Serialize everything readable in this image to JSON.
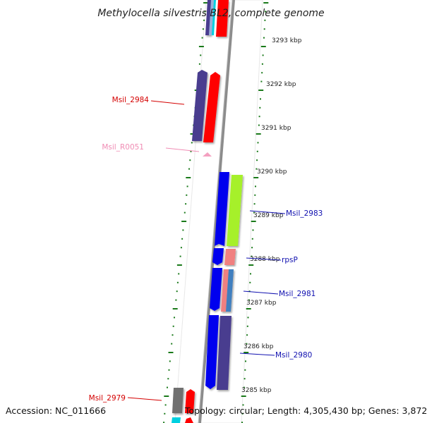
{
  "title": "Methylocella silvestris BL2, complete genome",
  "footer": {
    "accession": "Accession: NC_011666",
    "topology": "Topology: circular; Length: 4,305,430 bp; Genes: 3,872"
  },
  "scale_ticks": [
    "3293 kbp",
    "3292 kbp",
    "3291 kbp",
    "3290 kbp",
    "3289 kbp",
    "3288 kbp",
    "3287 kbp",
    "3286 kbp",
    "3285 kbp"
  ],
  "gene_labels": [
    "Msil_2984",
    "Msil_R0051",
    "Msil_2983",
    "rpsP",
    "Msil_2981",
    "Msil_2980",
    "Msil_2979"
  ],
  "colors": {
    "backbone": "#8c8c8c",
    "tick_green": "#1a7a1a",
    "label_red": "#d40000",
    "label_pink": "#f08cb4",
    "label_blue": "#1010b0",
    "gene_red": "#ff0000",
    "gene_purple": "#4a3d8f",
    "gene_blue": "#0000ee",
    "gene_lime": "#a6f02a",
    "gene_salmon": "#f08080",
    "gene_steel": "#3f7fbf",
    "gene_pink": "#f4a0c0",
    "gene_gray": "#707070",
    "gene_cyan": "#00d0e0"
  }
}
